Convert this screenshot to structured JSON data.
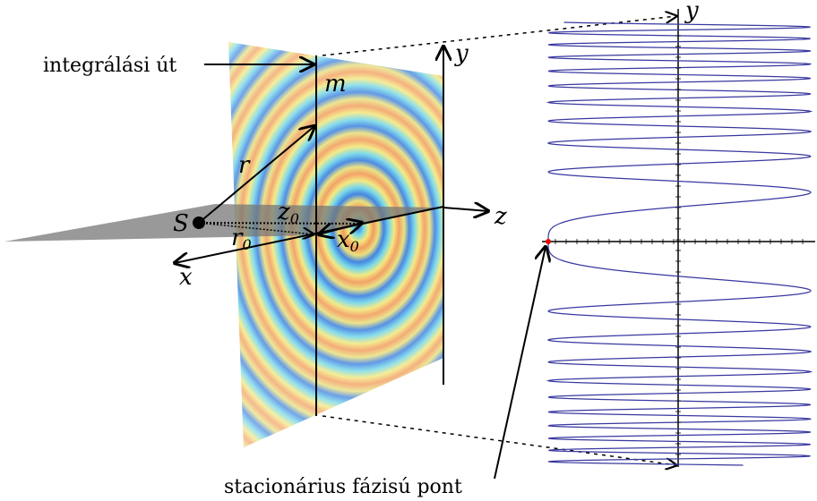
{
  "labels": {
    "integration_path": "integrálási út",
    "m": "m",
    "y_left": "y",
    "r": "r",
    "S": "S",
    "z0": {
      "base": "z",
      "sub": "0"
    },
    "r0": {
      "base": "r",
      "sub": "0"
    },
    "x0": {
      "base": "x",
      "sub": "0"
    },
    "z": "z",
    "x": "x",
    "y_right": "y",
    "stationary_point": "stacionárius fázisú pont"
  }
}
